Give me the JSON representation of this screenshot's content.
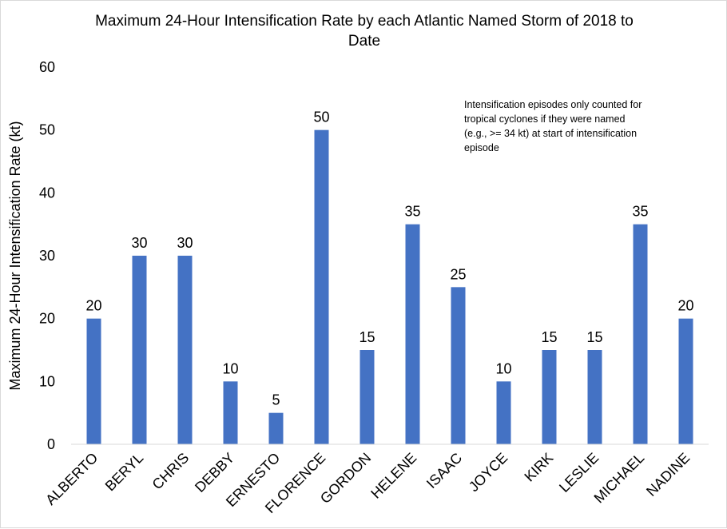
{
  "chart_data": {
    "type": "bar",
    "title": "Maximum 24-Hour Intensification Rate by each Atlantic Named Storm of 2018 to Date",
    "title_lines": [
      "Maximum 24-Hour Intensification Rate by each Atlantic Named Storm of 2018 to",
      "Date"
    ],
    "xlabel": "",
    "ylabel": "Maximum 24-Hour Intensification Rate (kt)",
    "categories": [
      "ALBERTO",
      "BERYL",
      "CHRIS",
      "DEBBY",
      "ERNESTO",
      "FLORENCE",
      "GORDON",
      "HELENE",
      "ISAAC",
      "JOYCE",
      "KIRK",
      "LESLIE",
      "MICHAEL",
      "NADINE"
    ],
    "values": [
      20,
      30,
      30,
      10,
      5,
      50,
      15,
      35,
      25,
      10,
      15,
      15,
      35,
      20
    ],
    "ylim": [
      0,
      60
    ],
    "yticks": [
      0,
      10,
      20,
      30,
      40,
      50,
      60
    ],
    "grid": false,
    "legend": "none",
    "bar_color": "#4472C4",
    "annotation": "Intensification episodes only counted for tropical cyclones if they were named (e.g., >= 34 kt) at start of intensification episode",
    "annotation_lines": [
      "Intensification episodes only counted for",
      "tropical cyclones if they were named",
      "(e.g., >= 34 kt) at start of intensification",
      "episode"
    ]
  }
}
